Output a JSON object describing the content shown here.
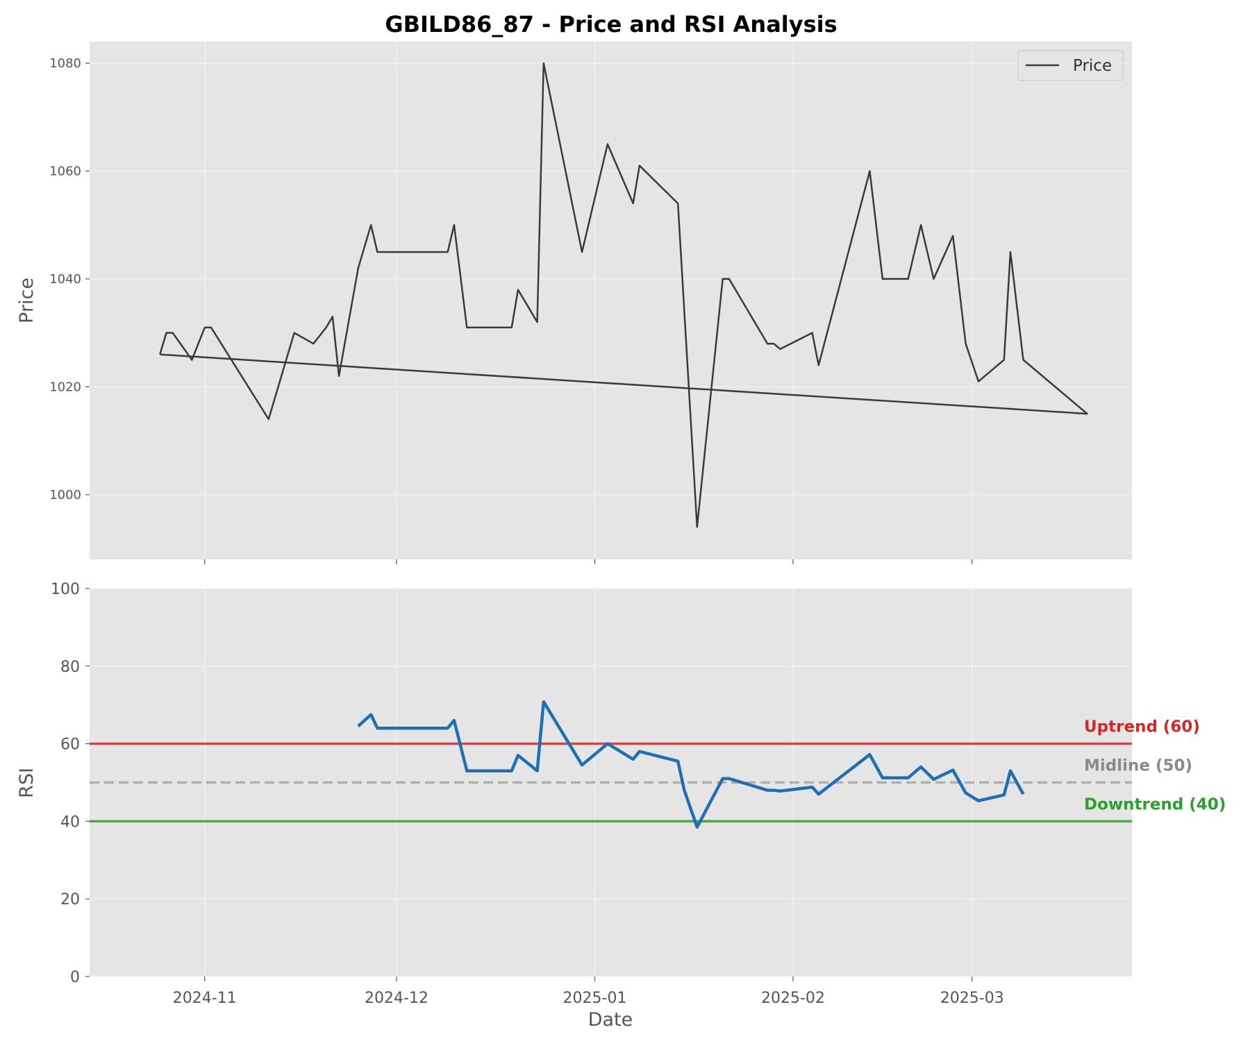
{
  "title": "GBILD86_87 - Price and RSI Analysis",
  "chart_data": [
    {
      "type": "line",
      "name": "price-panel",
      "ylabel": "Price",
      "ylim": [
        988,
        1084
      ],
      "yticks": [
        1000,
        1020,
        1040,
        1060,
        1080
      ],
      "grid": true,
      "legend": {
        "position": "top-right",
        "entries": [
          "Price"
        ]
      },
      "colors": {
        "price": "#3a3a3a",
        "background": "#e5e5e5",
        "grid": "#f2f2f2"
      },
      "series": [
        {
          "name": "Price",
          "points": [
            [
              "2024-10-25",
              1026
            ],
            [
              "2024-10-26",
              1030
            ],
            [
              "2024-10-27",
              1030
            ],
            [
              "2024-10-30",
              1025
            ],
            [
              "2024-11-01",
              1031
            ],
            [
              "2024-11-02",
              1031
            ],
            [
              "2024-11-11",
              1014
            ],
            [
              "2024-11-15",
              1030
            ],
            [
              "2024-11-18",
              1028
            ],
            [
              "2024-11-20",
              1031
            ],
            [
              "2024-11-21",
              1033
            ],
            [
              "2024-11-22",
              1022
            ],
            [
              "2024-11-25",
              1042
            ],
            [
              "2024-11-27",
              1050
            ],
            [
              "2024-11-28",
              1045
            ],
            [
              "2024-12-09",
              1045
            ],
            [
              "2024-12-10",
              1050
            ],
            [
              "2024-12-12",
              1031
            ],
            [
              "2024-12-19",
              1031
            ],
            [
              "2024-12-20",
              1038
            ],
            [
              "2024-12-23",
              1032
            ],
            [
              "2024-12-24",
              1080
            ],
            [
              "2024-12-30",
              1045
            ],
            [
              "2025-01-03",
              1065
            ],
            [
              "2025-01-07",
              1054
            ],
            [
              "2025-01-08",
              1061
            ],
            [
              "2025-01-14",
              1054
            ],
            [
              "2025-01-17",
              994
            ],
            [
              "2025-01-21",
              1040
            ],
            [
              "2025-01-22",
              1040
            ],
            [
              "2025-01-28",
              1028
            ],
            [
              "2025-01-29",
              1028
            ],
            [
              "2025-01-30",
              1027
            ],
            [
              "2025-02-04",
              1030
            ],
            [
              "2025-02-05",
              1024
            ],
            [
              "2025-02-13",
              1060
            ],
            [
              "2025-02-15",
              1040
            ],
            [
              "2025-02-19",
              1040
            ],
            [
              "2025-02-21",
              1050
            ],
            [
              "2025-02-23",
              1040
            ],
            [
              "2025-02-26",
              1048
            ],
            [
              "2025-02-28",
              1028
            ],
            [
              "2025-03-02",
              1021
            ],
            [
              "2025-03-06",
              1025
            ],
            [
              "2025-03-07",
              1045
            ],
            [
              "2025-03-09",
              1025
            ],
            [
              "2025-03-19",
              1015
            ],
            [
              "2024-10-25",
              1026
            ]
          ]
        }
      ]
    },
    {
      "type": "line",
      "name": "rsi-panel",
      "xlabel": "Date",
      "ylabel": "RSI",
      "ylim": [
        0,
        100
      ],
      "yticks": [
        0,
        20,
        40,
        60,
        80,
        100
      ],
      "xlim": [
        "2024-10-14",
        "2025-03-26"
      ],
      "xticks": [
        "2024-11-01",
        "2024-12-01",
        "2025-01-01",
        "2025-02-01",
        "2025-03-01"
      ],
      "xtick_labels": [
        "2024-11",
        "2024-12",
        "2025-01",
        "2025-02",
        "2025-03"
      ],
      "grid": true,
      "colors": {
        "rsi": "#1f6fb2",
        "uptrend": "#d62728",
        "midline": "#9e9e9e",
        "downtrend": "#2ca02c"
      },
      "reference_lines": [
        {
          "label": "Uptrend (60)",
          "value": 60,
          "color": "#d62728",
          "style": "solid"
        },
        {
          "label": "Midline (50)",
          "value": 50,
          "color": "#8a8a8a",
          "style": "dashed"
        },
        {
          "label": "Downtrend (40)",
          "value": 40,
          "color": "#2ca02c",
          "style": "solid"
        }
      ],
      "series": [
        {
          "name": "RSI",
          "points": [
            [
              "2024-11-25",
              64.5
            ],
            [
              "2024-11-27",
              67.5
            ],
            [
              "2024-11-28",
              64.0
            ],
            [
              "2024-12-09",
              64.0
            ],
            [
              "2024-12-10",
              66.0
            ],
            [
              "2024-12-12",
              53.0
            ],
            [
              "2024-12-19",
              53.0
            ],
            [
              "2024-12-20",
              57.0
            ],
            [
              "2024-12-23",
              53.0
            ],
            [
              "2024-12-24",
              70.8
            ],
            [
              "2024-12-30",
              54.5
            ],
            [
              "2025-01-03",
              60.0
            ],
            [
              "2025-01-07",
              56.0
            ],
            [
              "2025-01-08",
              58.0
            ],
            [
              "2025-01-14",
              55.5
            ],
            [
              "2025-01-15",
              48.0
            ],
            [
              "2025-01-17",
              38.5
            ],
            [
              "2025-01-21",
              51.0
            ],
            [
              "2025-01-22",
              51.0
            ],
            [
              "2025-01-28",
              48.0
            ],
            [
              "2025-01-29",
              48.0
            ],
            [
              "2025-01-30",
              47.8
            ],
            [
              "2025-02-04",
              48.8
            ],
            [
              "2025-02-05",
              47.0
            ],
            [
              "2025-02-13",
              57.2
            ],
            [
              "2025-02-15",
              51.2
            ],
            [
              "2025-02-19",
              51.2
            ],
            [
              "2025-02-21",
              54.0
            ],
            [
              "2025-02-23",
              50.8
            ],
            [
              "2025-02-26",
              53.2
            ],
            [
              "2025-02-28",
              47.3
            ],
            [
              "2025-03-02",
              45.3
            ],
            [
              "2025-03-06",
              46.8
            ],
            [
              "2025-03-07",
              53.0
            ],
            [
              "2025-03-09",
              47.0
            ]
          ]
        }
      ]
    }
  ]
}
